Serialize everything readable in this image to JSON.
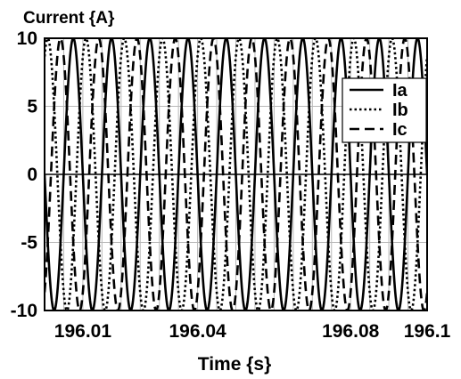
{
  "chart_data": {
    "type": "line",
    "ylabel": "Current {A}",
    "xlabel": "Time {s}",
    "xlim": [
      196.0,
      196.1
    ],
    "ylim": [
      -10,
      10
    ],
    "x_ticks": [
      {
        "value": 196.01,
        "label": "196.01"
      },
      {
        "value": 196.04,
        "label": "196.04"
      },
      {
        "value": 196.08,
        "label": "196.08"
      },
      {
        "value": 196.1,
        "label": "196.1"
      }
    ],
    "y_ticks": [
      {
        "value": 10,
        "label": "10"
      },
      {
        "value": 5,
        "label": "5"
      },
      {
        "value": 0,
        "label": "0"
      },
      {
        "value": -5,
        "label": "-5"
      },
      {
        "value": -10,
        "label": "-10"
      }
    ],
    "grid": true,
    "legend_position": "top-right",
    "series": [
      {
        "name": "Ia",
        "style": "solid",
        "amplitude": 10,
        "frequency_hz": 100,
        "phase_deg": 180
      },
      {
        "name": "Ib",
        "style": "dotted",
        "amplitude": 10,
        "frequency_hz": 100,
        "phase_deg": 60
      },
      {
        "name": "Ic",
        "style": "dashed",
        "amplitude": 10,
        "frequency_hz": 100,
        "phase_deg": -60
      }
    ]
  }
}
